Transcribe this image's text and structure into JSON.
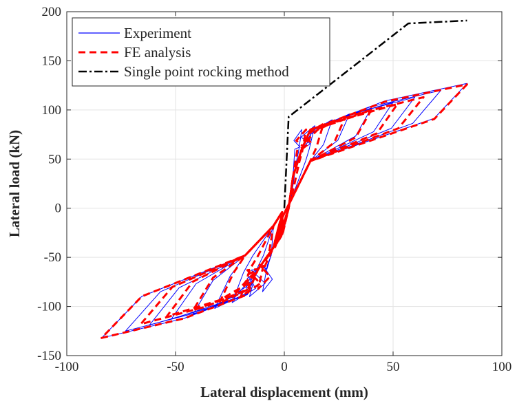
{
  "chart_data": {
    "type": "line",
    "title": "",
    "xlabel": "Lateral displacement (mm)",
    "ylabel": "Lateral load (kN)",
    "xlim": [
      -100,
      100
    ],
    "ylim": [
      -150,
      200
    ],
    "xticks": [
      -100,
      -50,
      0,
      50,
      100
    ],
    "yticks": [
      -150,
      -100,
      -50,
      0,
      50,
      100,
      150,
      200
    ],
    "xtick_labels": [
      "-100",
      "-50",
      "0",
      "50",
      "100"
    ],
    "ytick_labels": [
      "-150",
      "-100",
      "-50",
      "0",
      "50",
      "100",
      "150",
      "200"
    ],
    "grid": true,
    "legend_position": "top-left",
    "series": [
      {
        "name": "Experiment",
        "color": "#0000ff",
        "style": "solid",
        "loops": [
          {
            "posPeak": [
              8,
              80
            ],
            "negPeak": [
              -10,
              -85
            ]
          },
          {
            "posPeak": [
              14,
              84
            ],
            "negPeak": [
              -16,
              -90
            ]
          },
          {
            "posPeak": [
              22,
              90
            ],
            "negPeak": [
              -24,
              -96
            ]
          },
          {
            "posPeak": [
              30,
              96
            ],
            "negPeak": [
              -32,
              -102
            ]
          },
          {
            "posPeak": [
              40,
              102
            ],
            "negPeak": [
              -42,
              -108
            ]
          },
          {
            "posPeak": [
              50,
              108
            ],
            "negPeak": [
              -52,
              -113
            ]
          },
          {
            "posPeak": [
              60,
              113
            ],
            "negPeak": [
              -62,
              -119
            ]
          },
          {
            "posPeak": [
              72,
              120
            ],
            "negPeak": [
              -73,
              -125
            ]
          },
          {
            "posPeak": [
              84,
              127
            ],
            "negPeak": [
              -84,
              -132
            ]
          }
        ]
      },
      {
        "name": "FE analysis",
        "color": "#ff0000",
        "style": "dashed",
        "loops": [
          {
            "posPeak": [
              10,
              80
            ],
            "negPeak": [
              -12,
              -82
            ]
          },
          {
            "posPeak": [
              18,
              86
            ],
            "negPeak": [
              -20,
              -90
            ]
          },
          {
            "posPeak": [
              28,
              93
            ],
            "negPeak": [
              -30,
              -97
            ]
          },
          {
            "posPeak": [
              40,
              100
            ],
            "negPeak": [
              -42,
              -104
            ]
          },
          {
            "posPeak": [
              52,
              106
            ],
            "negPeak": [
              -54,
              -110
            ]
          },
          {
            "posPeak": [
              64,
              113
            ],
            "negPeak": [
              -66,
              -118
            ]
          },
          {
            "posPeak": [
              84,
              126
            ],
            "negPeak": [
              -84,
              -132
            ]
          }
        ]
      },
      {
        "name": "Single point rocking method",
        "color": "#000000",
        "style": "dashdot",
        "x": [
          0,
          2,
          57,
          84
        ],
        "y": [
          0,
          93,
          188,
          191
        ]
      }
    ]
  }
}
